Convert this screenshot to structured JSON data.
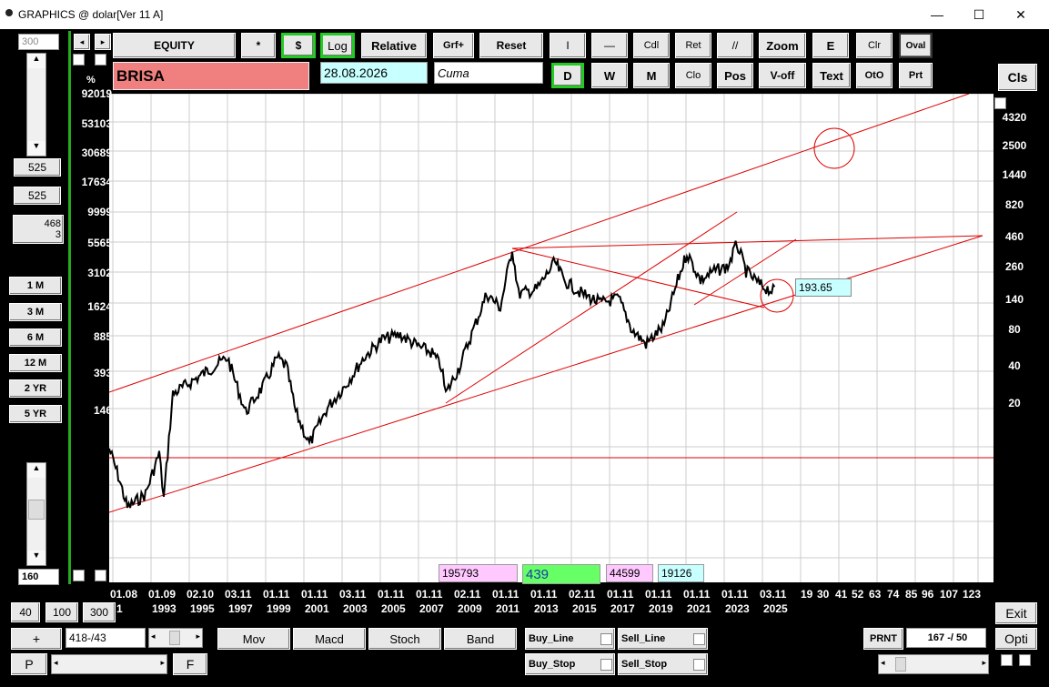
{
  "window": {
    "title": "GRAPHICS @ dolar[Ver 11 A]",
    "minimize": "—",
    "maximize": "☐",
    "close": "✕"
  },
  "left": {
    "zoom_value": "300",
    "v1": "525",
    "v2": "525",
    "v3a": "468",
    "v3b": "3",
    "pct": "%",
    "bottom_value": "160",
    "period_buttons": [
      "1 M",
      "3 M",
      "6 M",
      "12 M",
      "2 YR",
      "5 YR"
    ],
    "zoom_buttons": [
      "40",
      "100",
      "300"
    ],
    "plus": "+",
    "counter": "418-/43",
    "p": "P",
    "f": "F"
  },
  "toolbar": {
    "row1": [
      "EQUITY",
      "*",
      "$",
      "Log",
      "Relative",
      "Grf+",
      "Reset",
      "I",
      "—",
      "Cdl",
      "Ret",
      "//",
      "Zoom",
      "E",
      "Clr",
      "Oval"
    ],
    "row2": [
      "D",
      "W",
      "M",
      "Clo",
      "Pos",
      "V-off",
      "Text",
      "OtO",
      "Prt"
    ],
    "symbol": "BRISA",
    "date": "28.08.2026",
    "day": "Cuma",
    "cls": "Cls"
  },
  "chart": {
    "left_axis": [
      "92019",
      "53103",
      "30689",
      "17634",
      "9999",
      "5565",
      "3102",
      "1624",
      "885",
      "393",
      "146"
    ],
    "right_axis": [
      "4320",
      "2500",
      "1440",
      "820",
      "460",
      "260",
      "140",
      "80",
      "40",
      "20"
    ],
    "x_top": [
      "01.08",
      "01.09",
      "02.10",
      "03.11",
      "01.11",
      "01.11",
      "03.11",
      "01.11",
      "01.11",
      "02.11",
      "01.11",
      "01.11",
      "02.11",
      "01.11",
      "01.11",
      "01.11",
      "01.11",
      "03.11"
    ],
    "x_bottom": [
      "1",
      "1993",
      "1995",
      "1997",
      "1999",
      "2001",
      "2003",
      "2005",
      "2007",
      "2009",
      "2011",
      "2013",
      "2015",
      "2017",
      "2019",
      "2021",
      "2023",
      "2025"
    ],
    "x_extra": [
      "19",
      "30",
      "41",
      "52",
      "63",
      "74",
      "85",
      "96",
      "107",
      "123"
    ],
    "price_label": "193.65",
    "info": [
      "195793",
      "439",
      "44599",
      "19126"
    ]
  },
  "bottom": {
    "buttons": [
      "Mov",
      "Macd",
      "Stoch",
      "Band"
    ],
    "checks": [
      "Buy_Line",
      "Sell_Line",
      "Buy_Stop",
      "Sell_Stop"
    ],
    "prnt": "PRNT",
    "page": "167 -/ 50",
    "exit": "Exit",
    "opti": "Opti"
  },
  "colors": {
    "accent_green": "#22cc22",
    "symbol_bg": "#f08080",
    "date_bg": "#c8ffff",
    "trend": "#dd0000"
  }
}
